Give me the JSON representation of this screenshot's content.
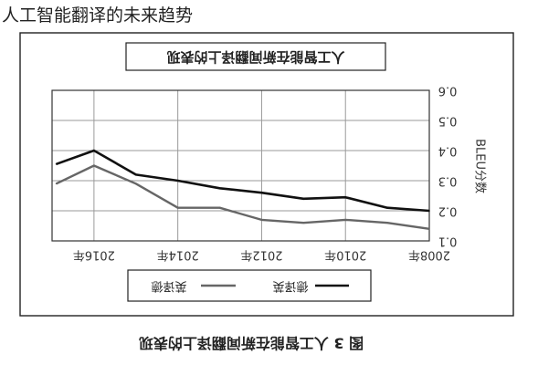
{
  "page": {
    "heading": "人工智能翻译的未来趋势"
  },
  "chart_data": {
    "type": "line",
    "mirrored": true,
    "title": "人工智能在新闻翻译上的表现",
    "caption": "图 3  人工智能在新闻翻译上的表现",
    "ylabel": "BLEU分数",
    "ylim": [
      0.1,
      0.6
    ],
    "yticks": [
      "0.1",
      "0.2",
      "0.3",
      "0.4",
      "0.5",
      "0.6"
    ],
    "x_domain": [
      2008,
      2017
    ],
    "x_tick_values": [
      2008,
      2010,
      2012,
      2014,
      2016
    ],
    "x_tick_labels": [
      "2008年",
      "2010年",
      "2012年",
      "2014年",
      "2016年"
    ],
    "grid": true,
    "legend_position": "bottom",
    "series": [
      {
        "name": "英译德",
        "color": "#666666",
        "points": [
          [
            2008,
            0.14
          ],
          [
            2009,
            0.16
          ],
          [
            2010,
            0.17
          ],
          [
            2011,
            0.16
          ],
          [
            2012,
            0.17
          ],
          [
            2013,
            0.21
          ],
          [
            2014,
            0.21
          ],
          [
            2015,
            0.29
          ],
          [
            2016,
            0.35
          ],
          [
            2016.9,
            0.29
          ]
        ]
      },
      {
        "name": "德译英",
        "color": "#111111",
        "points": [
          [
            2008,
            0.2
          ],
          [
            2009,
            0.21
          ],
          [
            2010,
            0.245
          ],
          [
            2011,
            0.24
          ],
          [
            2012,
            0.26
          ],
          [
            2013,
            0.275
          ],
          [
            2014,
            0.3
          ],
          [
            2015,
            0.32
          ],
          [
            2016,
            0.4
          ],
          [
            2016.9,
            0.355
          ]
        ]
      }
    ]
  }
}
